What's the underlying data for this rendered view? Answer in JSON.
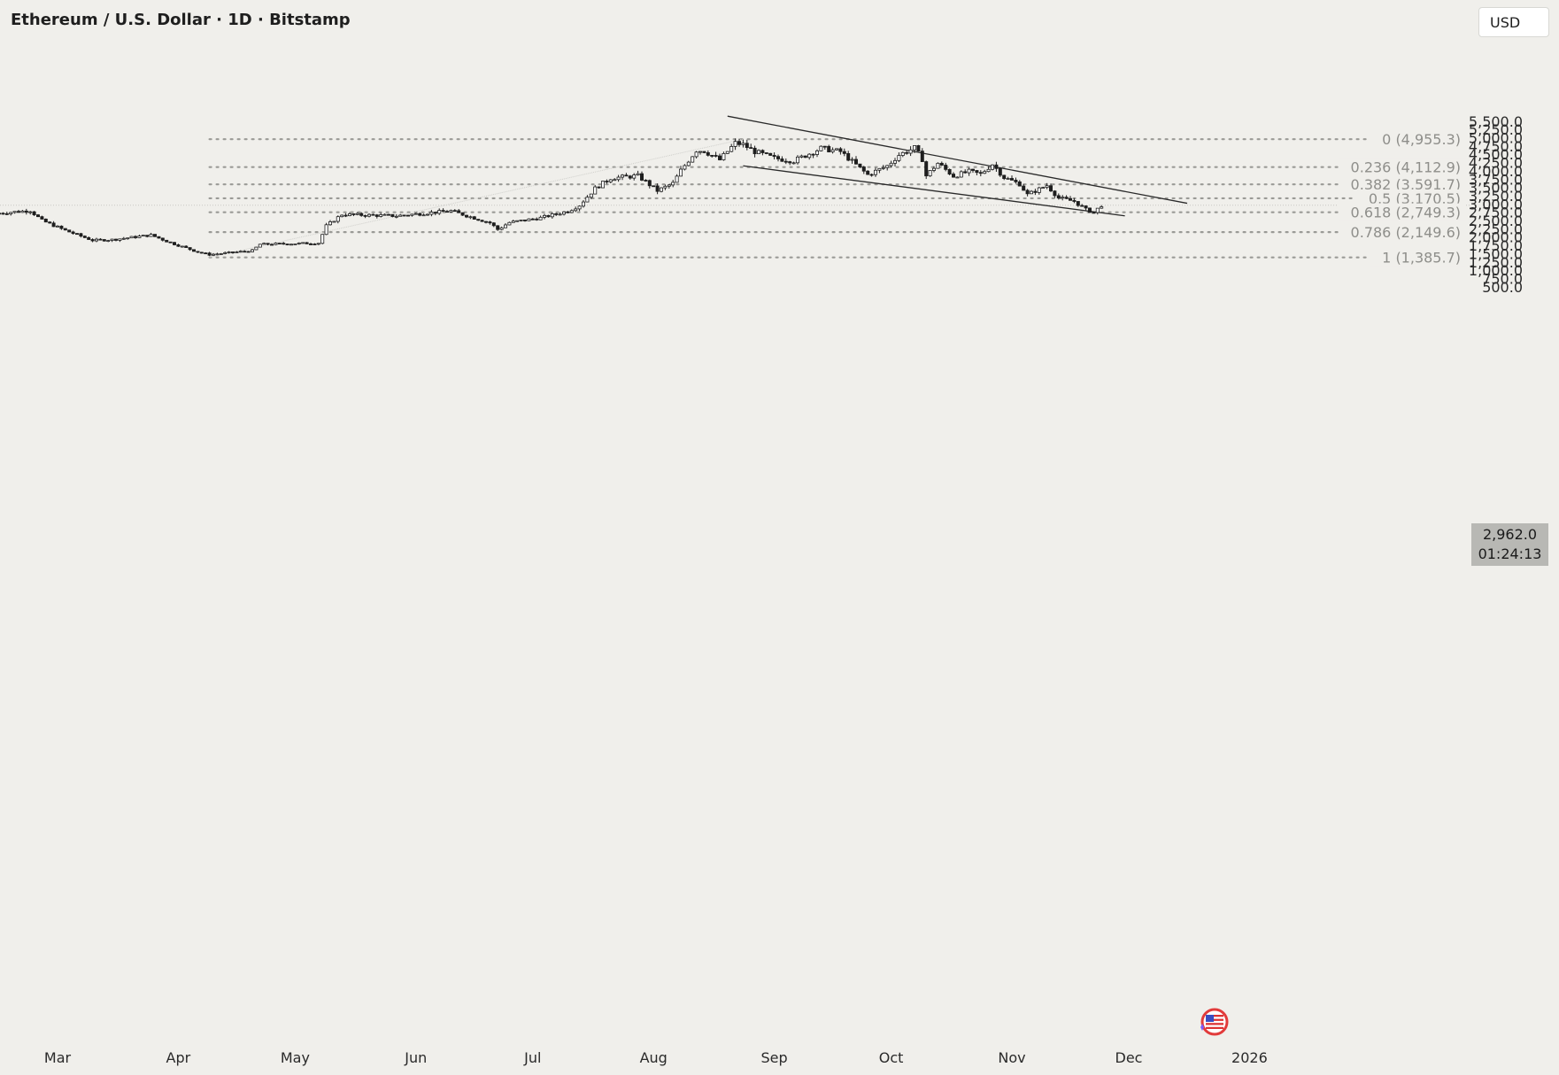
{
  "header": {
    "title": "Ethereum / U.S. Dollar · 1D · Bitstamp",
    "currency_button": "USD"
  },
  "price_badge": {
    "price": "2,962.0",
    "countdown": "01:24:13"
  },
  "icons": {
    "flag": "us-flag-icon"
  },
  "chart_data": {
    "type": "candlestick",
    "title": "Ethereum / U.S. Dollar · 1D · Bitstamp",
    "ylabel": "USD",
    "ylim": [
      350,
      5700
    ],
    "y_ticks": [
      500,
      750,
      1000,
      1250,
      1500,
      1750,
      2000,
      2250,
      2500,
      2750,
      3000,
      3250,
      3500,
      3750,
      4000,
      4250,
      4500,
      4750,
      5000,
      5250,
      5500
    ],
    "y_tick_labels": [
      "500.0",
      "750.0",
      "1,000.0",
      "1,250.0",
      "1,500.0",
      "1,750.0",
      "2,000.0",
      "2,250.0",
      "2,500.0",
      "2,750.0",
      "3,000.0",
      "3,250.0",
      "3,500.0",
      "3,750.0",
      "4,000.0",
      "4,250.0",
      "4,500.0",
      "4,750.0",
      "5,000.0",
      "5,250.0",
      "5,500.0"
    ],
    "x_labels": [
      "Mar",
      "Apr",
      "May",
      "Jun",
      "Jul",
      "Aug",
      "Sep",
      "Oct",
      "Nov",
      "Dec",
      "2026"
    ],
    "x_label_dates": [
      "2025-03-01",
      "2025-04-01",
      "2025-05-01",
      "2025-06-01",
      "2025-07-01",
      "2025-08-01",
      "2025-09-01",
      "2025-10-01",
      "2025-11-01",
      "2025-12-01",
      "2026-01-01"
    ],
    "last_price": 2962.0,
    "colors": {
      "candle": "#1e1e1e",
      "fib": "#9a9a96",
      "grid": "#f0efeb"
    },
    "fibonacci": [
      {
        "ratio": "0",
        "price": 4955.3,
        "label": "0 (4,955.3)"
      },
      {
        "ratio": "0.236",
        "price": 4112.9,
        "label": "0.236 (4,112.9)"
      },
      {
        "ratio": "0.382",
        "price": 3591.7,
        "label": "0.382 (3,591.7)"
      },
      {
        "ratio": "0.5",
        "price": 3170.5,
        "label": "0.5 (3,170.5)"
      },
      {
        "ratio": "0.618",
        "price": 2749.3,
        "label": "0.618 (2,749.3)"
      },
      {
        "ratio": "0.786",
        "price": 2149.6,
        "label": "0.786 (2,149.6)"
      },
      {
        "ratio": "1",
        "price": 1385.7,
        "label": "1 (1,385.7)"
      }
    ],
    "fib_range": {
      "from_date": "2025-04-09",
      "to_date": "2025-08-24",
      "from_price": 1385.7,
      "to_price": 4955.3
    },
    "trendlines": [
      {
        "name": "upper",
        "from": [
          "2025-08-20",
          5650
        ],
        "to": [
          "2025-12-16",
          3020
        ]
      },
      {
        "name": "lower",
        "from": [
          "2025-08-24",
          4150
        ],
        "to": [
          "2025-11-30",
          2640
        ]
      }
    ],
    "price_anchors": [
      [
        "2025-02-14",
        2720
      ],
      [
        "2025-02-22",
        2800
      ],
      [
        "2025-02-25",
        2500
      ],
      [
        "2025-03-03",
        2200
      ],
      [
        "2025-03-10",
        1900
      ],
      [
        "2025-03-15",
        1920
      ],
      [
        "2025-03-25",
        2060
      ],
      [
        "2025-03-30",
        1830
      ],
      [
        "2025-04-06",
        1550
      ],
      [
        "2025-04-09",
        1470
      ],
      [
        "2025-04-20",
        1590
      ],
      [
        "2025-04-22",
        1780
      ],
      [
        "2025-04-30",
        1800
      ],
      [
        "2025-05-07",
        1820
      ],
      [
        "2025-05-09",
        2340
      ],
      [
        "2025-05-13",
        2680
      ],
      [
        "2025-05-27",
        2640
      ],
      [
        "2025-06-10",
        2790
      ],
      [
        "2025-06-20",
        2430
      ],
      [
        "2025-06-22",
        2230
      ],
      [
        "2025-06-25",
        2440
      ],
      [
        "2025-07-03",
        2580
      ],
      [
        "2025-07-10",
        2780
      ],
      [
        "2025-07-13",
        2960
      ],
      [
        "2025-07-17",
        3470
      ],
      [
        "2025-07-21",
        3780
      ],
      [
        "2025-07-28",
        3850
      ],
      [
        "2025-08-02",
        3400
      ],
      [
        "2025-08-06",
        3620
      ],
      [
        "2025-08-08",
        4010
      ],
      [
        "2025-08-12",
        4620
      ],
      [
        "2025-08-14",
        4600
      ],
      [
        "2025-08-18",
        4330
      ],
      [
        "2025-08-22",
        4840
      ],
      [
        "2025-08-24",
        4790
      ],
      [
        "2025-08-27",
        4580
      ],
      [
        "2025-09-01",
        4380
      ],
      [
        "2025-09-06",
        4300
      ],
      [
        "2025-09-13",
        4680
      ],
      [
        "2025-09-18",
        4580
      ],
      [
        "2025-09-22",
        4180
      ],
      [
        "2025-09-25",
        3880
      ],
      [
        "2025-09-30",
        4150
      ],
      [
        "2025-10-03",
        4480
      ],
      [
        "2025-10-07",
        4690
      ],
      [
        "2025-10-09",
        4350
      ],
      [
        "2025-10-10",
        3850
      ],
      [
        "2025-10-13",
        4230
      ],
      [
        "2025-10-17",
        3840
      ],
      [
        "2025-10-21",
        3980
      ],
      [
        "2025-10-24",
        3900
      ],
      [
        "2025-10-27",
        4200
      ],
      [
        "2025-10-30",
        3800
      ],
      [
        "2025-11-03",
        3600
      ],
      [
        "2025-11-05",
        3280
      ],
      [
        "2025-11-10",
        3560
      ],
      [
        "2025-11-13",
        3180
      ],
      [
        "2025-11-17",
        3080
      ],
      [
        "2025-11-20",
        2830
      ],
      [
        "2025-11-22",
        2740
      ],
      [
        "2025-11-24",
        2962
      ]
    ]
  }
}
